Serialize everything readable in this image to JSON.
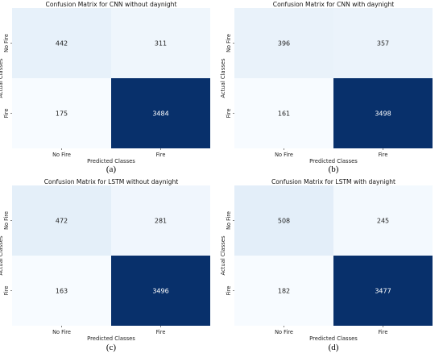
{
  "chart_data": [
    {
      "type": "heatmap",
      "title": "Confusion Matrix for CNN without daynight",
      "xlabel": "Predicted Classes",
      "ylabel": "Actual Classes",
      "x_categories": [
        "No Fire",
        "Fire"
      ],
      "y_categories": [
        "No Fire",
        "Fire"
      ],
      "values": [
        [
          442,
          311
        ],
        [
          175,
          3484
        ]
      ],
      "caption": "(a)",
      "colormap": "Blues"
    },
    {
      "type": "heatmap",
      "title": "Confusion Matrix for CNN with daynight",
      "xlabel": "Predicted Classes",
      "ylabel": "Actual Classes",
      "x_categories": [
        "No Fire",
        "Fire"
      ],
      "y_categories": [
        "No Fire",
        "Fire"
      ],
      "values": [
        [
          396,
          357
        ],
        [
          161,
          3498
        ]
      ],
      "caption": "(b)",
      "colormap": "Blues"
    },
    {
      "type": "heatmap",
      "title": "Confusion Matrix for LSTM without daynight",
      "xlabel": "Predicted Classes",
      "ylabel": "Actual Classes",
      "x_categories": [
        "No Fire",
        "Fire"
      ],
      "y_categories": [
        "No Fire",
        "Fire"
      ],
      "values": [
        [
          472,
          281
        ],
        [
          163,
          3496
        ]
      ],
      "caption": "(c)",
      "colormap": "Blues"
    },
    {
      "type": "heatmap",
      "title": "Confusion Matrix for LSTM with daynight",
      "xlabel": "Predicted Classes",
      "ylabel": "Actual Classes",
      "x_categories": [
        "No Fire",
        "Fire"
      ],
      "y_categories": [
        "No Fire",
        "Fire"
      ],
      "values": [
        [
          508,
          245
        ],
        [
          182,
          3477
        ]
      ],
      "caption": "(d)",
      "colormap": "Blues"
    }
  ]
}
